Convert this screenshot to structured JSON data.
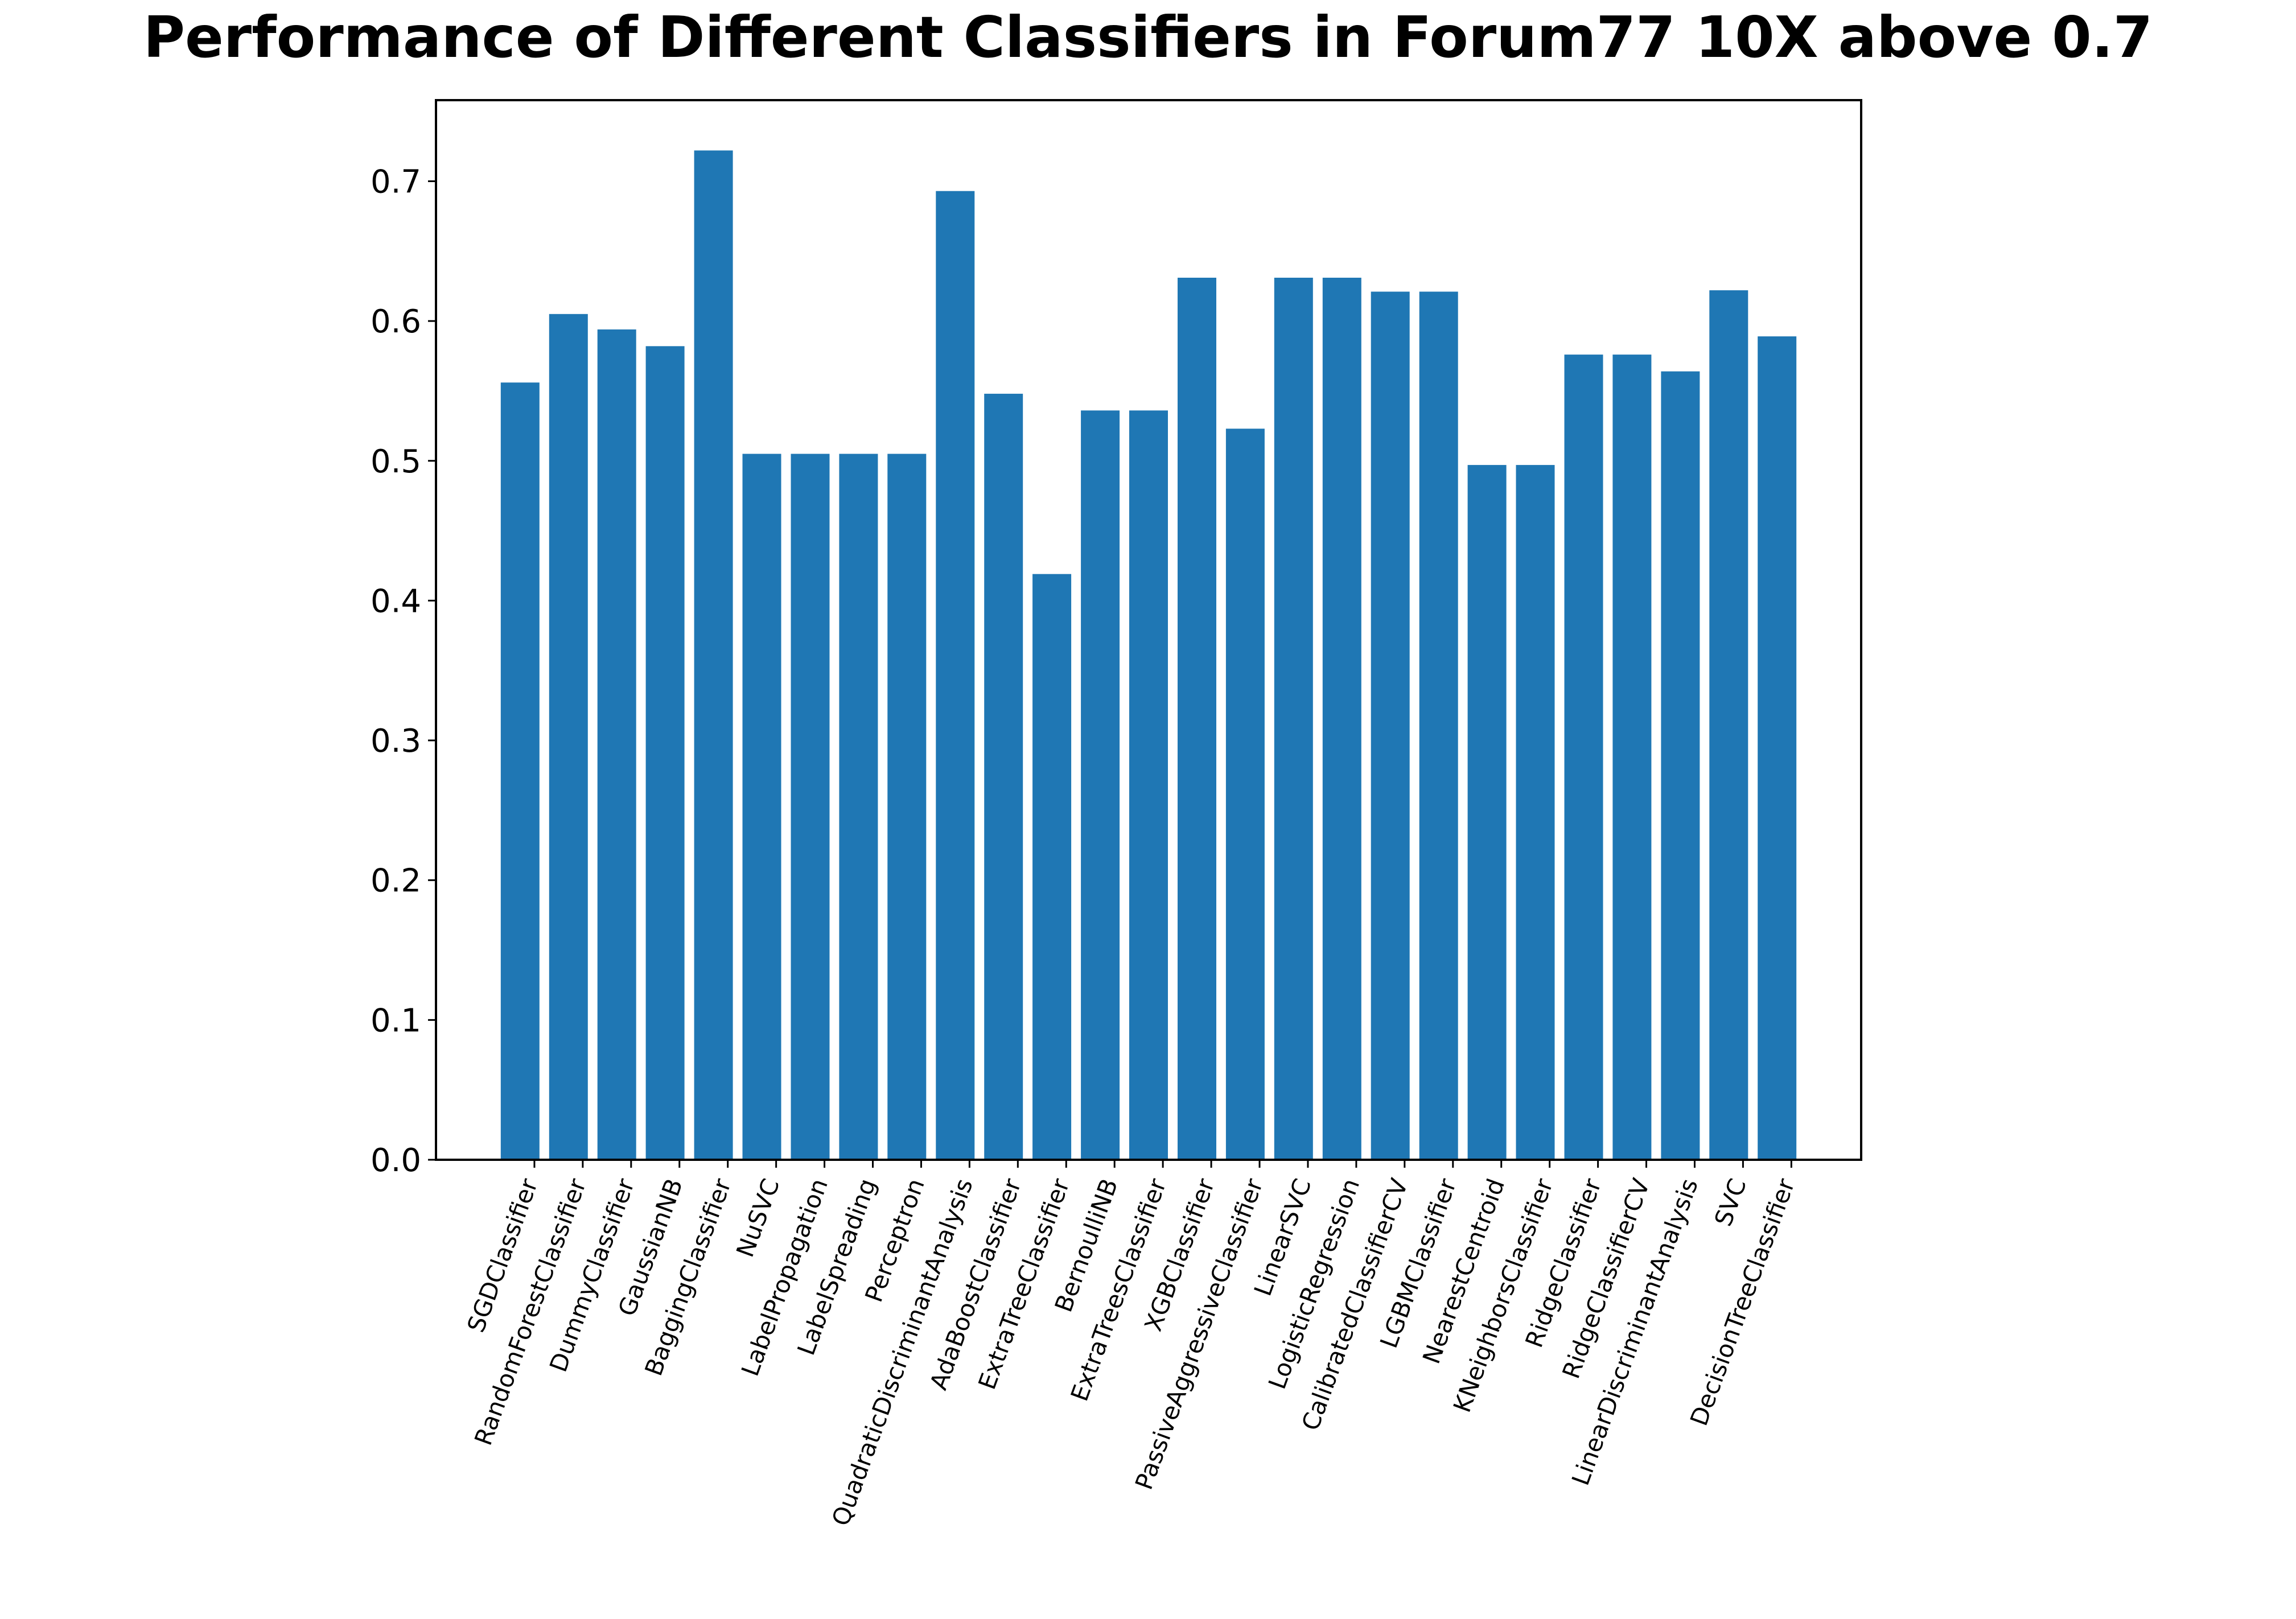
{
  "chart_data": {
    "type": "bar",
    "title": "Performance of Different Classifiers in Forum77 10X above 0.7",
    "xlabel": "",
    "ylabel": "",
    "ylim": [
      0,
      0.758
    ],
    "yticks": [
      0.0,
      0.1,
      0.2,
      0.3,
      0.4,
      0.5,
      0.6,
      0.7
    ],
    "ytick_labels": [
      "0.0",
      "0.1",
      "0.2",
      "0.3",
      "0.4",
      "0.5",
      "0.6",
      "0.7"
    ],
    "bar_color": "#1f77b4",
    "grid": false,
    "categories": [
      "SGDClassifier",
      "RandomForestClassifier",
      "DummyClassifier",
      "GaussianNB",
      "BaggingClassifier",
      "NuSVC",
      "LabelPropagation",
      "LabelSpreading",
      "Perceptron",
      "QuadraticDiscriminantAnalysis",
      "AdaBoostClassifier",
      "ExtraTreeClassifier",
      "BernoulliNB",
      "ExtraTreesClassifier",
      "XGBClassifier",
      "PassiveAggressiveClassifier",
      "LinearSVC",
      "LogisticRegression",
      "CalibratedClassifierCV",
      "LGBMClassifier",
      "NearestCentroid",
      "KNeighborsClassifier",
      "RidgeClassifier",
      "RidgeClassifierCV",
      "LinearDiscriminantAnalysis",
      "SVC",
      "DecisionTreeClassifier"
    ],
    "values": [
      0.556,
      0.605,
      0.594,
      0.582,
      0.722,
      0.505,
      0.505,
      0.505,
      0.505,
      0.693,
      0.548,
      0.419,
      0.536,
      0.536,
      0.631,
      0.523,
      0.631,
      0.631,
      0.621,
      0.621,
      0.497,
      0.497,
      0.576,
      0.576,
      0.564,
      0.622,
      0.589
    ]
  }
}
